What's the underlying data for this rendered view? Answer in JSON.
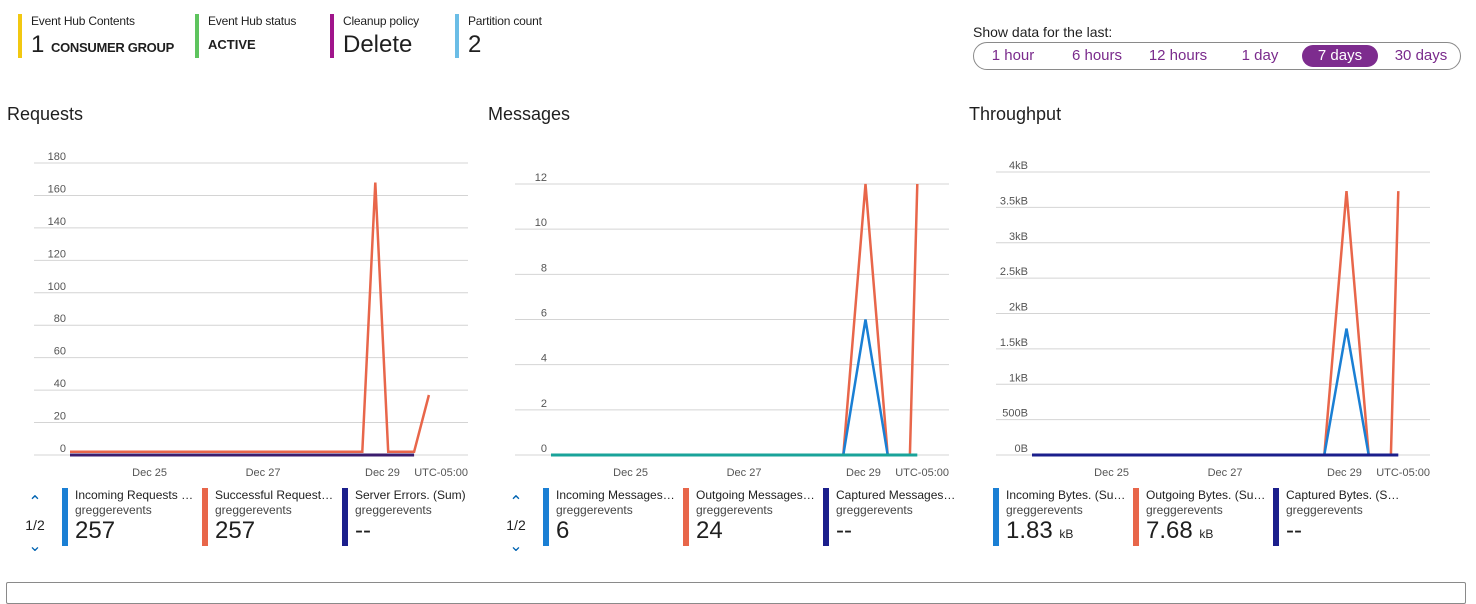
{
  "summary": {
    "contents": {
      "label": "Event Hub Contents",
      "value": "1",
      "unit": "CONSUMER GROUP",
      "color": "#f2c811"
    },
    "status": {
      "label": "Event Hub status",
      "value": "ACTIVE",
      "color": "#5ec45e"
    },
    "cleanup": {
      "label": "Cleanup policy",
      "value": "Delete",
      "color": "#a0158b"
    },
    "partitions": {
      "label": "Partition count",
      "value": "2",
      "color": "#6bbde6"
    }
  },
  "time_range": {
    "label": "Show data for the last:",
    "options": [
      "1 hour",
      "6 hours",
      "12 hours",
      "1 day",
      "7 days",
      "30 days"
    ],
    "selected": "7 days"
  },
  "charts": {
    "requests": {
      "title": "Requests"
    },
    "messages": {
      "title": "Messages"
    },
    "throughput": {
      "title": "Throughput"
    }
  },
  "chart_data": [
    {
      "type": "line",
      "title": "Requests",
      "x": [
        "Dec 25",
        "Dec 27",
        "Dec 29"
      ],
      "timezone": "UTC-05:00",
      "yticks": [
        "0",
        "20",
        "40",
        "60",
        "80",
        "100",
        "120",
        "140",
        "160",
        "180"
      ],
      "ylim": [
        0,
        180
      ],
      "series": [
        {
          "name": "Successful Requests",
          "color": "#e8664a",
          "points": [
            [
              0,
              2
            ],
            [
              0.79,
              2
            ],
            [
              0.825,
              168
            ],
            [
              0.86,
              2
            ],
            [
              0.93,
              2
            ],
            [
              0.97,
              37
            ]
          ]
        },
        {
          "name": "Server Errors",
          "color": "#3b1d6e",
          "points": [
            [
              0,
              0
            ],
            [
              0.93,
              0
            ]
          ]
        }
      ]
    },
    {
      "type": "line",
      "title": "Messages",
      "x": [
        "Dec 25",
        "Dec 27",
        "Dec 29"
      ],
      "timezone": "UTC-05:00",
      "yticks": [
        "0",
        "2",
        "4",
        "6",
        "8",
        "10",
        "12"
      ],
      "ylim": [
        0,
        12
      ],
      "series": [
        {
          "name": "Outgoing Messages",
          "color": "#e8664a",
          "points": [
            [
              0.79,
              0
            ],
            [
              0.85,
              12
            ],
            [
              0.91,
              0
            ],
            [
              0.97,
              0
            ],
            [
              0.99,
              12
            ]
          ]
        },
        {
          "name": "Incoming Messages",
          "color": "#1a7fd4",
          "points": [
            [
              0.79,
              0
            ],
            [
              0.85,
              6
            ],
            [
              0.91,
              0
            ]
          ]
        },
        {
          "name": "Captured Messages",
          "color": "#19a39a",
          "points": [
            [
              0,
              0
            ],
            [
              0.99,
              0
            ]
          ]
        }
      ]
    },
    {
      "type": "line",
      "title": "Throughput",
      "x": [
        "Dec 25",
        "Dec 27",
        "Dec 29"
      ],
      "timezone": "UTC-05:00",
      "yticks": [
        "0B",
        "500B",
        "1kB",
        "1.5kB",
        "2kB",
        "2.5kB",
        "3kB",
        "3.5kB",
        "4kB"
      ],
      "ylim": [
        0,
        4096
      ],
      "series": [
        {
          "name": "Outgoing Bytes",
          "color": "#e8664a",
          "points": [
            [
              0.79,
              0
            ],
            [
              0.85,
              3820
            ],
            [
              0.91,
              0
            ],
            [
              0.97,
              0
            ],
            [
              0.99,
              3820
            ]
          ]
        },
        {
          "name": "Incoming Bytes",
          "color": "#1a7fd4",
          "points": [
            [
              0.79,
              0
            ],
            [
              0.85,
              1830
            ],
            [
              0.91,
              0
            ]
          ]
        },
        {
          "name": "Captured Bytes",
          "color": "#1b1f8c",
          "points": [
            [
              0,
              0
            ],
            [
              0.99,
              0
            ]
          ]
        }
      ]
    }
  ],
  "legends": {
    "requests": {
      "pager": "1/2",
      "items": [
        {
          "name": "Incoming Requests (Sum)",
          "resource": "greggerevents",
          "value": "257",
          "unit": "",
          "color": "#1a7fd4"
        },
        {
          "name": "Successful Requests ...",
          "resource": "greggerevents",
          "value": "257",
          "unit": "",
          "color": "#e8664a"
        },
        {
          "name": "Server Errors. (Sum)",
          "resource": "greggerevents",
          "value": "--",
          "unit": "",
          "color": "#1b1f8c"
        }
      ]
    },
    "messages": {
      "pager": "1/2",
      "items": [
        {
          "name": "Incoming Messages (Sum)",
          "resource": "greggerevents",
          "value": "6",
          "unit": "",
          "color": "#1a7fd4"
        },
        {
          "name": "Outgoing Messages (Sum)",
          "resource": "greggerevents",
          "value": "24",
          "unit": "",
          "color": "#e8664a"
        },
        {
          "name": "Captured Messages. (...",
          "resource": "greggerevents",
          "value": "--",
          "unit": "",
          "color": "#1b1f8c"
        }
      ]
    },
    "throughput": {
      "items": [
        {
          "name": "Incoming Bytes. (Sum)",
          "resource": "greggerevents",
          "value": "1.83",
          "unit": "kB",
          "color": "#1a7fd4"
        },
        {
          "name": "Outgoing Bytes. (Sum)",
          "resource": "greggerevents",
          "value": "7.68",
          "unit": "kB",
          "color": "#e8664a"
        },
        {
          "name": "Captured Bytes. (Sum)",
          "resource": "greggerevents",
          "value": "--",
          "unit": "",
          "color": "#1b1f8c"
        }
      ]
    }
  }
}
